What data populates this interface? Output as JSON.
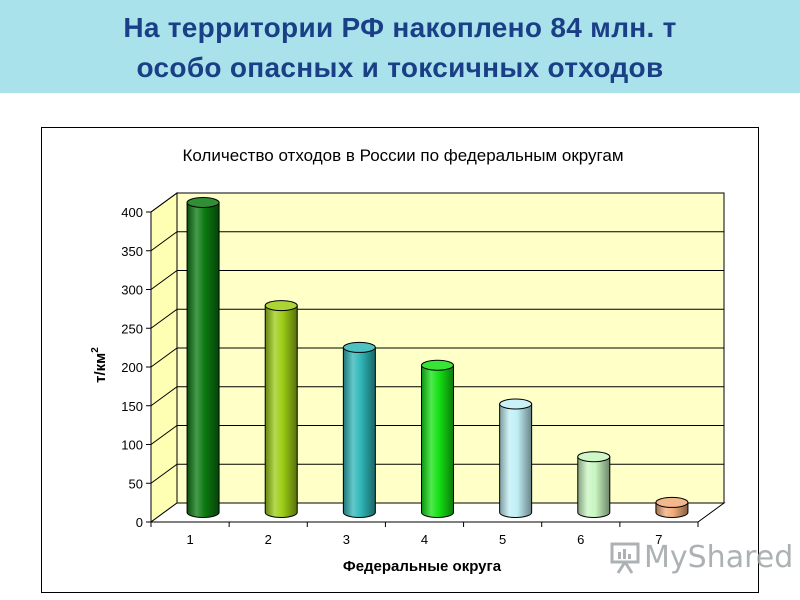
{
  "slide": {
    "title": "На территории РФ накоплено 84 млн. т\nособо опасных и токсичных отходов"
  },
  "watermark": {
    "text": "MyShared"
  },
  "colors": {
    "header_bg": "#a9e2ea",
    "title": "#1b3f86",
    "plot_bg": "#ffffc8",
    "bars": [
      "#0b7a10",
      "#9ccc14",
      "#2fb6b8",
      "#14e014",
      "#bfeff5",
      "#c8f5c0",
      "#f0ab78"
    ]
  },
  "chart_data": {
    "type": "bar",
    "title": "Количество отходов в России по федеральным округам",
    "xlabel": "Федеральные округа",
    "ylabel": "т/км",
    "ylabel_sup": "2",
    "categories": [
      "1",
      "2",
      "3",
      "4",
      "5",
      "6",
      "7"
    ],
    "values": [
      400,
      267,
      213,
      190,
      140,
      72,
      13
    ],
    "ylim": [
      0,
      400
    ],
    "yticks": [
      0,
      50,
      100,
      150,
      200,
      250,
      300,
      350,
      400
    ],
    "grid": true,
    "legend": "none",
    "style": "3d-cylinder"
  }
}
